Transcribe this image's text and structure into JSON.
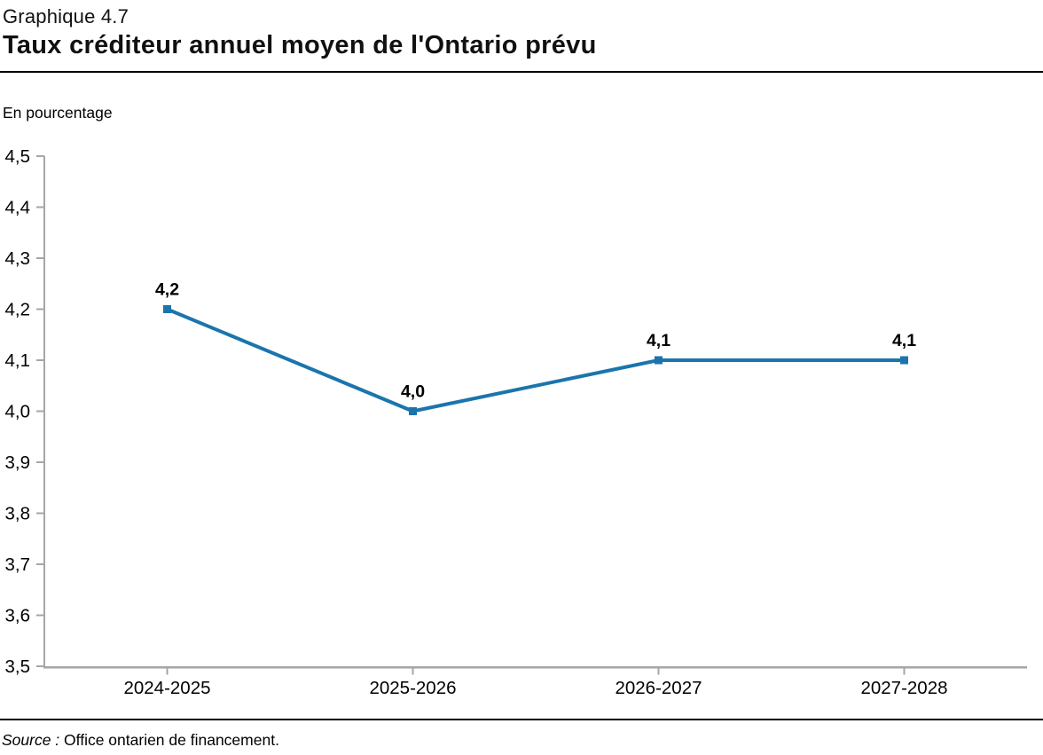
{
  "header": {
    "kicker": "Graphique 4.7",
    "title": "Taux créditeur annuel moyen de l'Ontario prévu"
  },
  "axis_note": "En pourcentage",
  "source": {
    "prefix": "Source :",
    "text": " Office ontarien de financement."
  },
  "colors": {
    "line": "#1B75AC",
    "marker": "#1B75AC",
    "axis": "#A6A6A6",
    "text": "#000000",
    "rule": "#000000"
  },
  "chart_data": {
    "type": "line",
    "title": "Taux créditeur annuel moyen de l'Ontario prévu",
    "ylabel": "En pourcentage",
    "xlabel": "",
    "categories": [
      "2024-2025",
      "2025-2026",
      "2026-2027",
      "2027-2028"
    ],
    "values": [
      4.2,
      4.0,
      4.1,
      4.1
    ],
    "point_labels": [
      "4,2",
      "4,0",
      "4,1",
      "4,1"
    ],
    "ylim": [
      3.5,
      4.5
    ],
    "ytick_step": 0.1,
    "ytick_labels": [
      "4,5",
      "4,4",
      "4,3",
      "4,2",
      "4,1",
      "4,0",
      "3,9",
      "3,8",
      "3,7",
      "3,6",
      "3,5"
    ],
    "grid": false,
    "legend_position": "none",
    "marker_shape": "square",
    "decimal_separator": ","
  }
}
